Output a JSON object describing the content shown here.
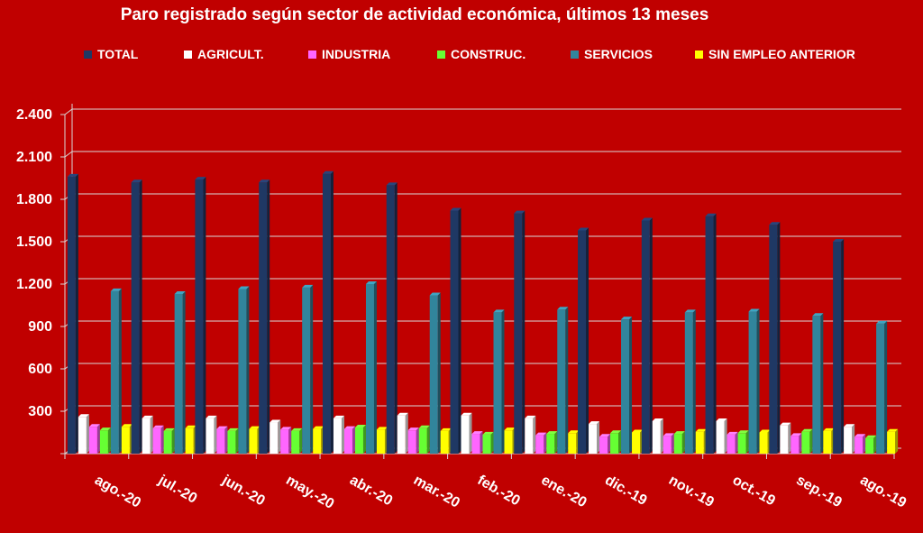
{
  "chart_data": {
    "type": "bar",
    "title": "Paro registrado según sector de actividad económica, últimos 13 meses",
    "xlabel": "",
    "ylabel": "",
    "ylim": [
      0,
      2400
    ],
    "yticks": [
      "2.400",
      "2.100",
      "1.800",
      "1.500",
      "1.200",
      "900",
      "600",
      "300"
    ],
    "ytick_values": [
      2400,
      2100,
      1800,
      1500,
      1200,
      900,
      600,
      300
    ],
    "grid": true,
    "legend_position": "top",
    "categories": [
      "ago.-20",
      "jul.-20",
      "jun.-20",
      "may.-20",
      "abr.-20",
      "mar.-20",
      "feb.-20",
      "ene.-20",
      "dic.-19",
      "nov.-19",
      "oct.-19",
      "sep.-19",
      "ago.-19"
    ],
    "series": [
      {
        "name": "TOTAL",
        "color": "#1f3864",
        "values": [
          1960,
          1920,
          1940,
          1920,
          1980,
          1900,
          1720,
          1700,
          1580,
          1650,
          1680,
          1620,
          1500
        ]
      },
      {
        "name": "AGRICULT.",
        "color": "#ffffff",
        "values": [
          260,
          250,
          250,
          220,
          250,
          270,
          270,
          250,
          210,
          230,
          230,
          200,
          190
        ]
      },
      {
        "name": "INDUSTRIA",
        "color": "#ff66ff",
        "values": [
          190,
          180,
          175,
          170,
          175,
          165,
          140,
          130,
          120,
          125,
          135,
          125,
          120
        ]
      },
      {
        "name": "CONSTRUC.",
        "color": "#66ff33",
        "values": [
          165,
          160,
          160,
          160,
          185,
          180,
          135,
          140,
          145,
          140,
          145,
          155,
          110
        ]
      },
      {
        "name": "SERVICIOS",
        "color": "#31859c",
        "values": [
          1150,
          1130,
          1165,
          1175,
          1200,
          1120,
          1000,
          1020,
          950,
          1000,
          1005,
          975,
          920
        ]
      },
      {
        "name": "SIN EMPLEO ANTERIOR",
        "color": "#ffff00",
        "values": [
          190,
          180,
          175,
          175,
          170,
          160,
          165,
          145,
          150,
          155,
          150,
          160,
          155
        ]
      }
    ]
  }
}
